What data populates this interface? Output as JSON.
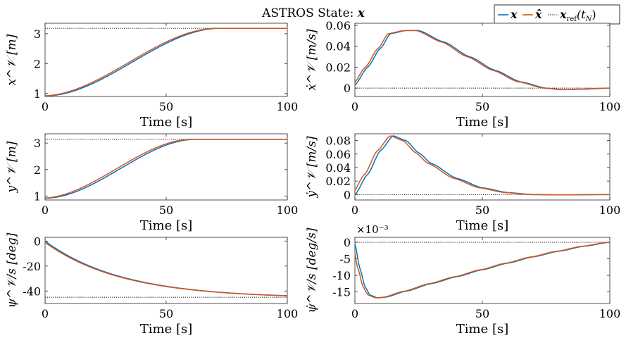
{
  "figure": {
    "title_prefix": "ASTROS State: ",
    "title_var": "x",
    "legend": {
      "placement": "top-right",
      "entries": [
        {
          "label": "x",
          "color": "#0072BD",
          "style": "solid"
        },
        {
          "label": "x̂",
          "color": "#D95319",
          "style": "solid"
        },
        {
          "label": "x",
          "sub": "ref",
          "suffix": "(t",
          "sub2": "N",
          "close": ")",
          "color": "#000000",
          "style": "dotted"
        }
      ]
    }
  },
  "chart_data": [
    {
      "type": "line",
      "xlabel": "Time [s]",
      "ylabel": "x^𝒱 [m]",
      "xlim": [
        0,
        100
      ],
      "xticks": [
        0,
        50,
        100
      ],
      "ylim": [
        0.9,
        3.35
      ],
      "yticks": [
        1,
        2,
        3
      ],
      "ytick_labels": [
        "1",
        "2",
        "3"
      ],
      "reference": 3.18,
      "kind": "s-curve",
      "start": 0.92,
      "end": 3.18,
      "t_settle": 72,
      "lead": 1.2
    },
    {
      "type": "line",
      "xlabel": "Time [s]",
      "ylabel": "ẋ^𝒱 [m/s]",
      "xlim": [
        0,
        100
      ],
      "xticks": [
        0,
        50,
        100
      ],
      "ylim": [
        -0.008,
        0.062
      ],
      "yticks": [
        0,
        0.02,
        0.04,
        0.06
      ],
      "ytick_labels": [
        "0",
        "0.02",
        "0.04",
        "0.06"
      ],
      "reference": 0,
      "kind": "velocity",
      "series_points": [
        [
          0,
          0.003
        ],
        [
          5,
          0.02
        ],
        [
          10,
          0.038
        ],
        [
          14,
          0.052
        ],
        [
          20,
          0.055
        ],
        [
          25,
          0.055
        ],
        [
          35,
          0.044
        ],
        [
          45,
          0.03
        ],
        [
          55,
          0.017
        ],
        [
          65,
          0.006
        ],
        [
          75,
          0.0
        ],
        [
          82,
          -0.0015
        ],
        [
          90,
          -0.001
        ],
        [
          100,
          0.0
        ]
      ],
      "lead": 0.9
    },
    {
      "type": "line",
      "xlabel": "Time [s]",
      "ylabel": "y^𝒱 [m]",
      "xlim": [
        0,
        100
      ],
      "xticks": [
        0,
        50,
        100
      ],
      "ylim": [
        0.85,
        3.35
      ],
      "yticks": [
        1,
        2,
        3
      ],
      "ytick_labels": [
        "1",
        "2",
        "3"
      ],
      "reference": 3.14,
      "kind": "s-curve",
      "start": 0.92,
      "end": 3.14,
      "t_settle": 62,
      "lead": 1.5
    },
    {
      "type": "line",
      "xlabel": "Time [s]",
      "ylabel": "ẏ^𝒱 [m/s]",
      "xlim": [
        0,
        100
      ],
      "xticks": [
        0,
        50,
        100
      ],
      "ylim": [
        -0.008,
        0.09
      ],
      "yticks": [
        0,
        0.02,
        0.04,
        0.06,
        0.08
      ],
      "ytick_labels": [
        "0",
        "0.02",
        "0.04",
        "0.06",
        "0.08"
      ],
      "reference": 0,
      "kind": "velocity",
      "series_points": [
        [
          0,
          0.0
        ],
        [
          5,
          0.03
        ],
        [
          10,
          0.065
        ],
        [
          15,
          0.087
        ],
        [
          20,
          0.08
        ],
        [
          25,
          0.062
        ],
        [
          30,
          0.046
        ],
        [
          40,
          0.024
        ],
        [
          50,
          0.01
        ],
        [
          60,
          0.003
        ],
        [
          70,
          0.0
        ],
        [
          80,
          -0.0005
        ],
        [
          100,
          0.0
        ]
      ],
      "lead": 1.2
    },
    {
      "type": "line",
      "xlabel": "Time [s]",
      "ylabel": "ψ^𝒱/s [deg]",
      "xlim": [
        0,
        100
      ],
      "xticks": [
        0,
        50,
        100
      ],
      "ylim": [
        -50,
        3
      ],
      "yticks": [
        0,
        -20,
        -40
      ],
      "ytick_labels": [
        "0",
        "-20",
        "-40"
      ],
      "reference": -45,
      "kind": "exp",
      "start": 0,
      "end": -45.8,
      "tau": 32,
      "lead": 0.8
    },
    {
      "type": "line",
      "xlabel": "Time [s]",
      "ylabel": "ψ̇^𝒱/s [deg/s]",
      "xlim": [
        0,
        100
      ],
      "xticks": [
        0,
        50,
        100
      ],
      "ylim": [
        -0.0185,
        0.0015
      ],
      "yticks": [
        0,
        -0.005,
        -0.01,
        -0.015
      ],
      "ytick_labels": [
        "0",
        "-5",
        "-10",
        "-15"
      ],
      "exponent_label": "×10⁻³",
      "reference": 0,
      "kind": "rate",
      "series_points": [
        [
          0,
          -0.0005
        ],
        [
          2,
          -0.008
        ],
        [
          4,
          -0.0135
        ],
        [
          6,
          -0.016
        ],
        [
          9,
          -0.0168
        ],
        [
          12,
          -0.0166
        ],
        [
          20,
          -0.0148
        ],
        [
          30,
          -0.0125
        ],
        [
          40,
          -0.0104
        ],
        [
          50,
          -0.0083
        ],
        [
          60,
          -0.0063
        ],
        [
          70,
          -0.0044
        ],
        [
          80,
          -0.0027
        ],
        [
          90,
          -0.0012
        ],
        [
          100,
          0.0
        ]
      ],
      "lead": 0.8
    }
  ]
}
